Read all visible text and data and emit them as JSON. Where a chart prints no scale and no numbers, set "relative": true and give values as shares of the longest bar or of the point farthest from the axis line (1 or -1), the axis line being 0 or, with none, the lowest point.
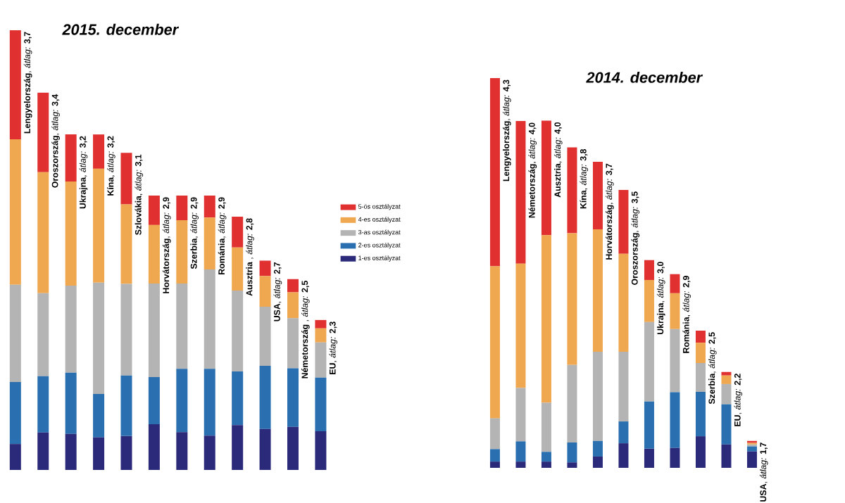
{
  "chart_data": [
    {
      "type": "bar",
      "title": "2015. december",
      "stacked": true,
      "relative": true,
      "legend": "right",
      "categories": [
        "**Lengyelország**, *átlag:* **3,7**",
        "**Oroszország**, *átlag:* **3,4**",
        "**Ukrajna**, *átlag:* **3,2**",
        "**Kína**, *átlag:* **3,2**",
        "**Szlovákia**, *átlag:* **3,1**",
        "**Horvátország**, *átlag:* **2,9**",
        "**Szerbia**, *átlag:* **2,9**",
        "**Románia**, *átlag:* **2,9**",
        "**Ausztria** , *átlag:* **2,8**",
        "**USA**, *átlag:* **2,7**",
        "**Németország** , *átlag:* **2,5**",
        "**EU**, *átlag:* **2,3**"
      ],
      "series": [
        {
          "name": "1-es osztályzat",
          "color": "#2b2a7a",
          "values": [
            0.059,
            0.085,
            0.082,
            0.074,
            0.077,
            0.104,
            0.086,
            0.078,
            0.102,
            0.093,
            0.098,
            0.088
          ]
        },
        {
          "name": "2-es osztályzat",
          "color": "#2a70b0",
          "values": [
            0.141,
            0.128,
            0.139,
            0.099,
            0.138,
            0.107,
            0.144,
            0.152,
            0.122,
            0.144,
            0.133,
            0.122
          ]
        },
        {
          "name": "3-as osztályzat",
          "color": "#b4b4b4",
          "values": [
            0.221,
            0.189,
            0.198,
            0.253,
            0.208,
            0.213,
            0.194,
            0.226,
            0.184,
            0.134,
            0.114,
            0.08
          ]
        },
        {
          "name": "4-es osztályzat",
          "color": "#f0a850",
          "values": [
            0.331,
            0.275,
            0.237,
            0.259,
            0.181,
            0.133,
            0.144,
            0.118,
            0.098,
            0.07,
            0.059,
            0.032
          ]
        },
        {
          "name": "5-ös osztályzat",
          "color": "#e03030",
          "values": [
            0.248,
            0.181,
            0.107,
            0.078,
            0.117,
            0.067,
            0.056,
            0.05,
            0.07,
            0.035,
            0.03,
            0.019
          ]
        }
      ]
    },
    {
      "type": "bar",
      "title": "2014. december",
      "stacked": true,
      "relative": true,
      "categories": [
        "**Lengyelország**, *átlag:* **4,3**",
        "**Németország**, *átlag:* **4,0**",
        "**Ausztria**, *átlag:* **4,0**",
        "**Kína**, *átlag:* **3,8**",
        "**Horvátország**, *átlag:* **3,7**",
        "**Oroszország**, *átlag:* **3,5**",
        "**Ukrajna**, *átlag:* **3,0**",
        "**Románia**, *átlag:* **2,9**",
        "**Szerbia**, *átlag:* **2,5**",
        "**EU**, *átlag:* **2,2**",
        "**USA**, *átlag:* **1,7**"
      ],
      "series": [
        {
          "color": "#2b2a7a",
          "values": [
            0.016,
            0.016,
            0.016,
            0.014,
            0.029,
            0.063,
            0.049,
            0.051,
            0.081,
            0.06,
            0.042
          ]
        },
        {
          "color": "#2a70b0",
          "values": [
            0.032,
            0.052,
            0.025,
            0.051,
            0.04,
            0.056,
            0.121,
            0.143,
            0.114,
            0.103,
            0.013
          ]
        },
        {
          "color": "#b4b4b4",
          "values": [
            0.079,
            0.137,
            0.126,
            0.199,
            0.229,
            0.179,
            0.204,
            0.162,
            0.074,
            0.052,
            0.005
          ]
        },
        {
          "color": "#f0a850",
          "values": [
            0.39,
            0.319,
            0.43,
            0.338,
            0.314,
            0.251,
            0.108,
            0.092,
            0.052,
            0.022,
            0.004
          ]
        },
        {
          "color": "#e03030",
          "values": [
            0.483,
            0.366,
            0.294,
            0.22,
            0.173,
            0.164,
            0.051,
            0.049,
            0.031,
            0.009,
            0.005
          ]
        }
      ]
    }
  ]
}
